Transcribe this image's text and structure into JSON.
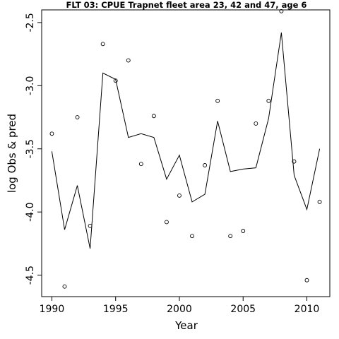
{
  "chart_data": {
    "type": "scatter",
    "title": "FLT 03: CPUE Trapnet fleet area 23, 42 and 47, age 6",
    "xlabel": "Year",
    "ylabel": "log Obs & pred",
    "xlim": [
      1989.2,
      2011.8
    ],
    "ylim": [
      -4.67,
      -2.4
    ],
    "x_ticks": [
      1990,
      1995,
      2000,
      2005,
      2010
    ],
    "y_ticks": [
      -2.5,
      -3.0,
      -3.5,
      -4.0,
      -4.5
    ],
    "x_tick_labels": [
      "1990",
      "1995",
      "2000",
      "2005",
      "2010"
    ],
    "y_tick_labels": [
      "-2.5",
      "-3.0",
      "-3.5",
      "-4.0",
      "-4.5"
    ],
    "grid": false,
    "series": [
      {
        "style": "points",
        "x": [
          1990,
          1991,
          1992,
          1993,
          1994,
          1995,
          1996,
          1997,
          1998,
          1999,
          2000,
          2001,
          2002,
          2003,
          2004,
          2005,
          2006,
          2007,
          2008,
          2009,
          2010,
          2011
        ],
        "y": [
          -3.38,
          -4.59,
          -3.25,
          -4.11,
          -2.67,
          -2.96,
          -2.8,
          -3.62,
          -3.24,
          -4.08,
          -3.87,
          -4.19,
          -3.63,
          -3.12,
          -4.19,
          -4.15,
          -3.3,
          -3.12,
          -2.41,
          -3.6,
          -4.54,
          -3.92
        ]
      },
      {
        "style": "line",
        "x": [
          1990,
          1991,
          1992,
          1993,
          1994,
          1995,
          1996,
          1997,
          1998,
          1999,
          2000,
          2001,
          2002,
          2003,
          2004,
          2005,
          2006,
          2007,
          2008,
          2009,
          2010,
          2011
        ],
        "y": [
          -3.52,
          -4.14,
          -3.79,
          -4.29,
          -2.9,
          -2.95,
          -3.41,
          -3.38,
          -3.41,
          -3.74,
          -3.55,
          -3.92,
          -3.86,
          -3.28,
          -3.68,
          -3.66,
          -3.65,
          -3.26,
          -2.58,
          -3.71,
          -3.98,
          -3.5
        ]
      }
    ]
  }
}
